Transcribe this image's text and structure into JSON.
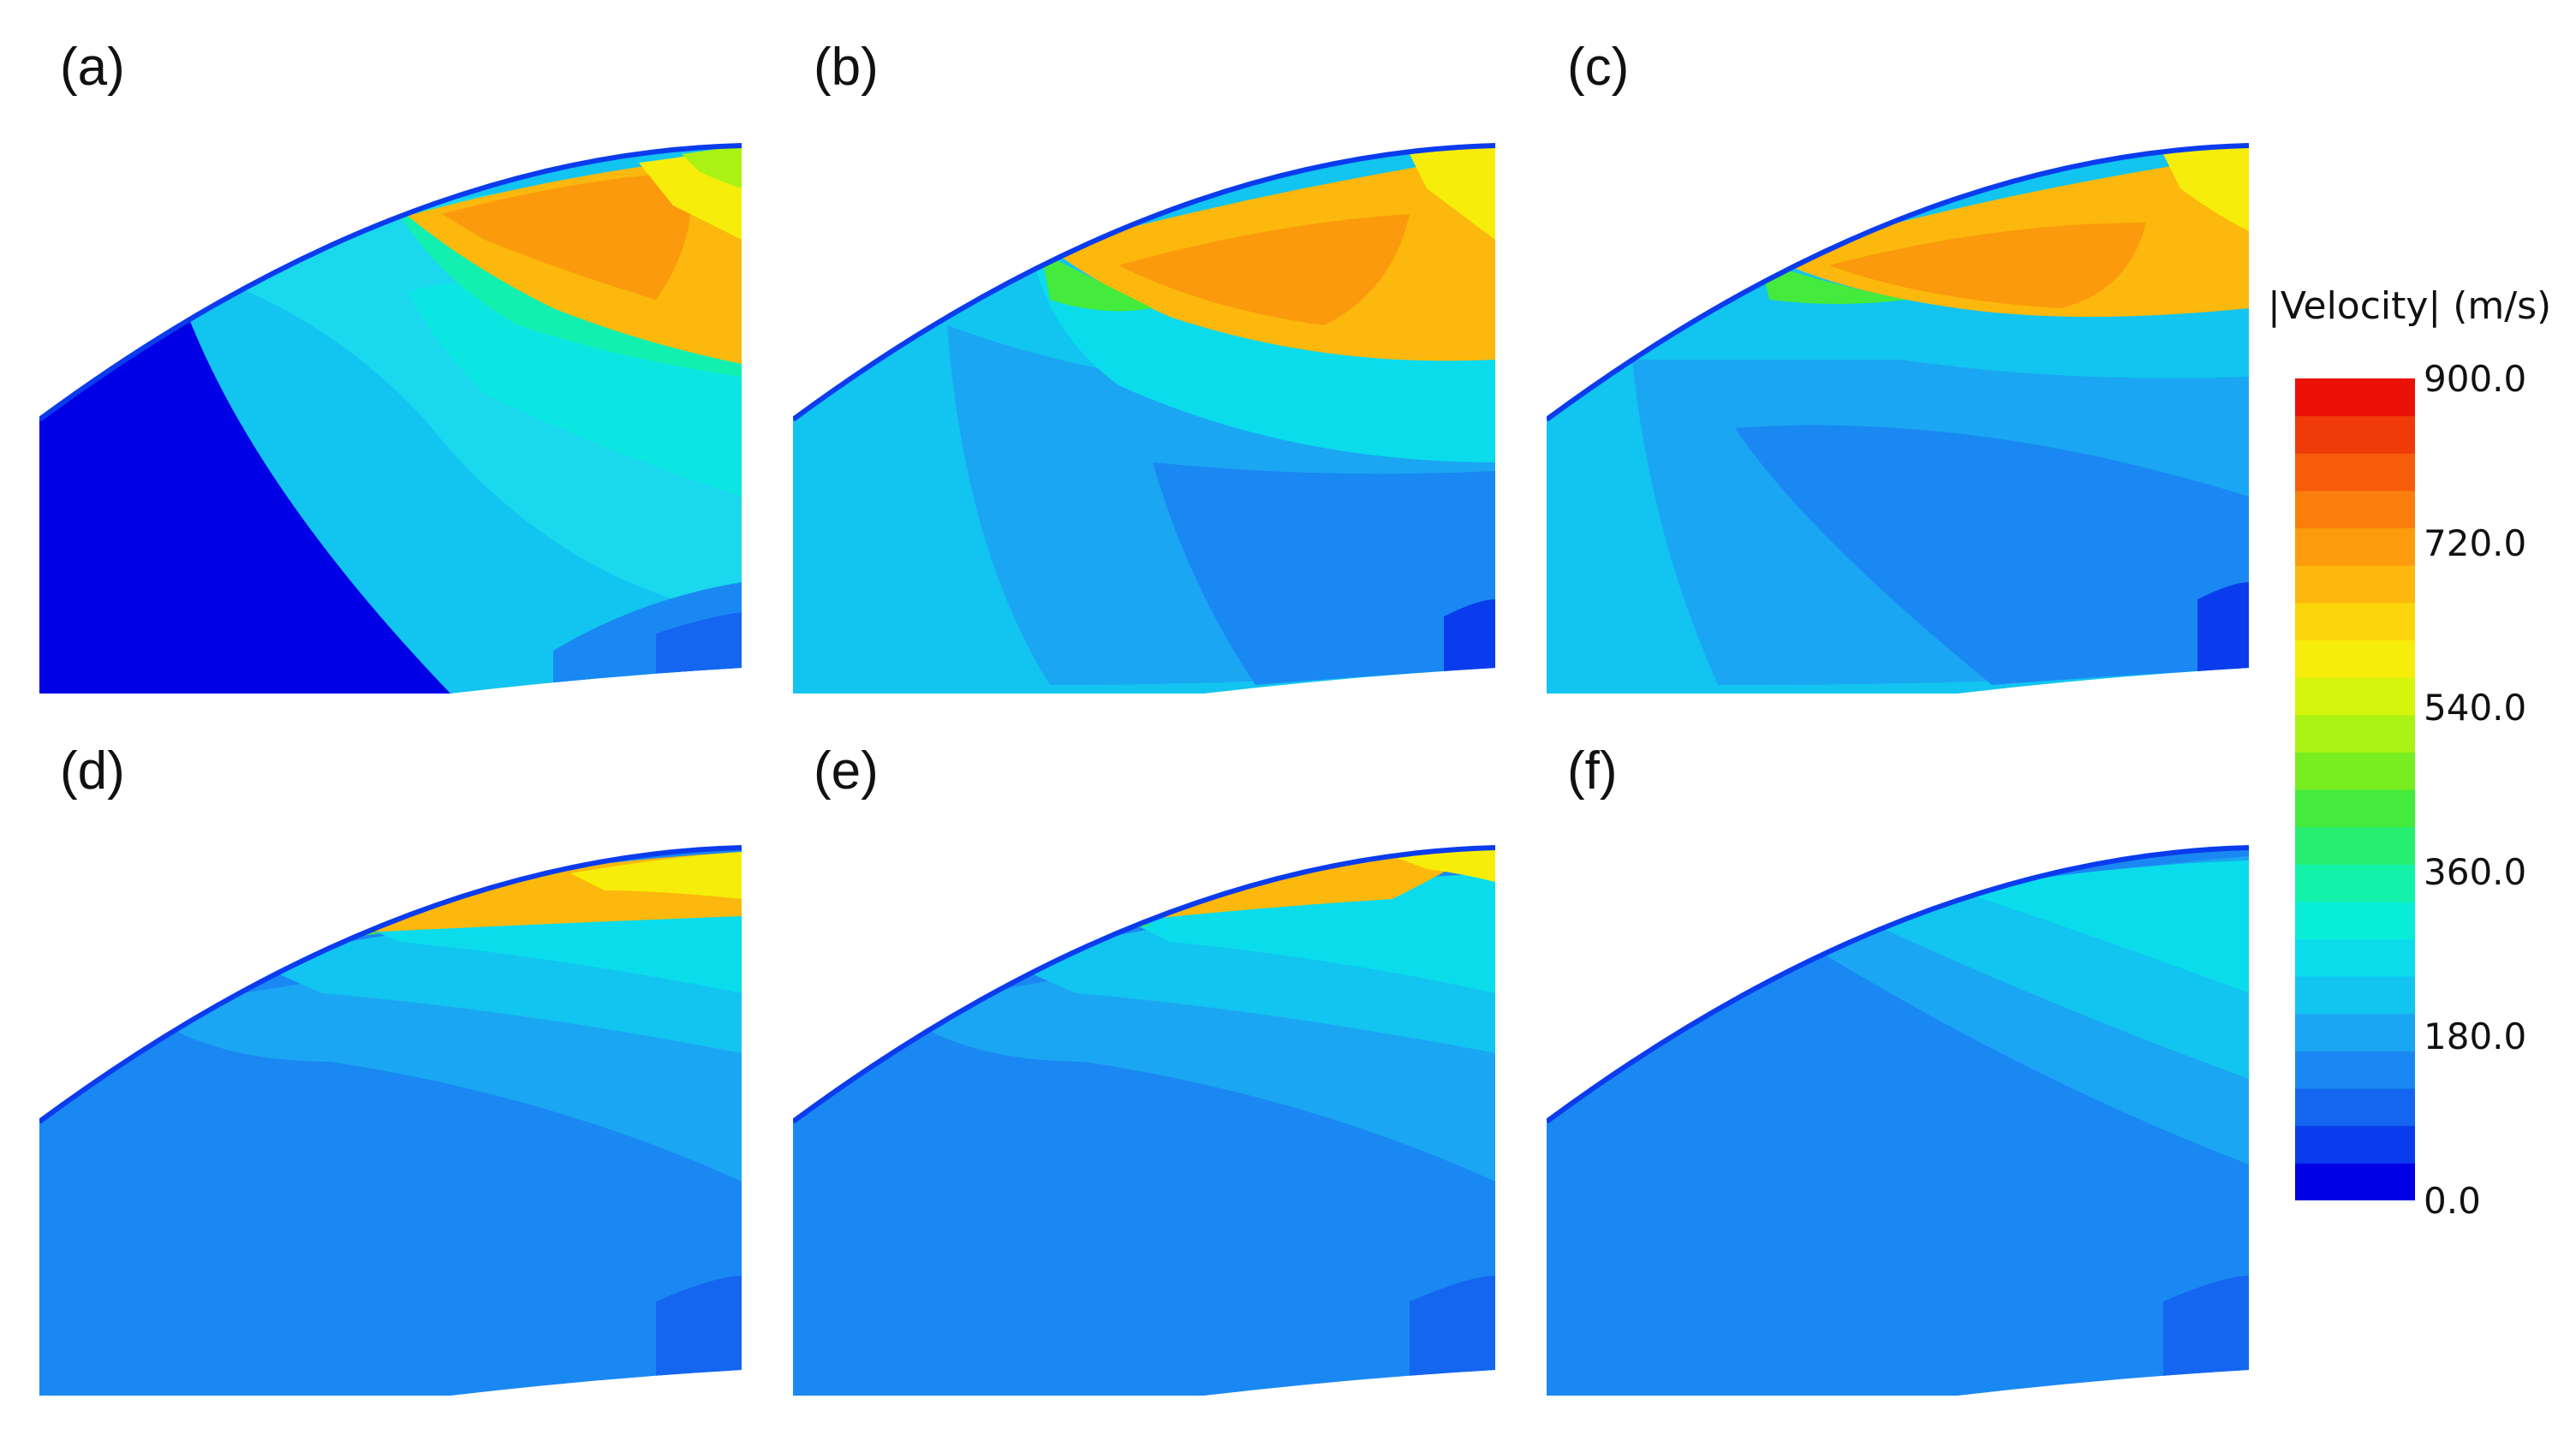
{
  "panels": [
    {
      "id": "a",
      "label": "(a)"
    },
    {
      "id": "b",
      "label": "(b)"
    },
    {
      "id": "c",
      "label": "(c)"
    },
    {
      "id": "d",
      "label": "(d)"
    },
    {
      "id": "e",
      "label": "(e)"
    },
    {
      "id": "f",
      "label": "(f)"
    }
  ],
  "colorbar": {
    "title": "|Velocity| (m/s)",
    "ticks": [
      "900.0",
      "720.0",
      "540.0",
      "360.0",
      "180.0",
      "0.0"
    ],
    "range": [
      0,
      900
    ],
    "colors": [
      "#0000e6",
      "#0a3cee",
      "#1466f0",
      "#1a88f2",
      "#1aa6f2",
      "#12c4f0",
      "#0adcec",
      "#08eed6",
      "#12f2a8",
      "#26ee70",
      "#44ea3c",
      "#78ee20",
      "#aaf214",
      "#d6f40c",
      "#f6ee0a",
      "#fcd40a",
      "#fcb80c",
      "#fc9c0c",
      "#fa7e0c",
      "#f65c0a",
      "#f03a08",
      "#ea1006"
    ]
  }
}
